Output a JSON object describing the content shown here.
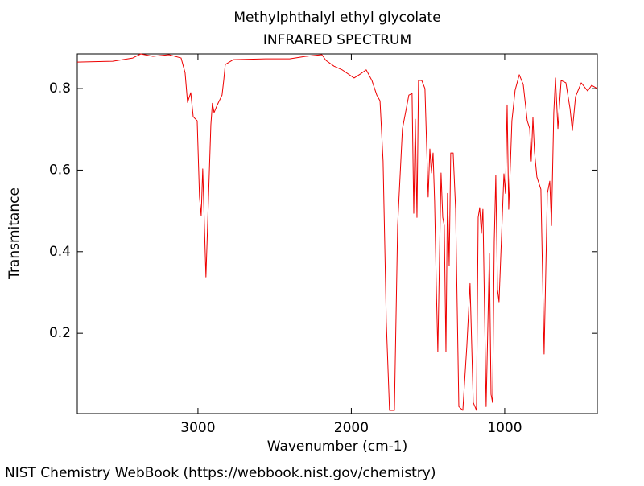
{
  "chart_data": {
    "type": "line",
    "title": "Methylphthalyl ethyl glycolate",
    "subtitle": "INFRARED SPECTRUM",
    "x_label": "Wavenumber (cm-1)",
    "y_label": "Transmitance",
    "source": "NIST Chemistry WebBook (https://webbook.nist.gov/chemistry)",
    "color": "#ee0000",
    "xlim": [
      3787,
      396
    ],
    "ylim": [
      0.003,
      0.885
    ],
    "xticks": [
      3000,
      2000,
      1000
    ],
    "yticks": [
      0.2,
      0.4,
      0.6,
      0.8
    ],
    "x": [
      3787,
      3556,
      3425,
      3373,
      3294,
      3189,
      3110,
      3084,
      3068,
      3047,
      3031,
      3005,
      2990,
      2979,
      2969,
      2948,
      2932,
      2916,
      2906,
      2895,
      2874,
      2843,
      2832,
      2822,
      2769,
      2559,
      2402,
      2297,
      2192,
      2165,
      2113,
      2060,
      1982,
      1940,
      1903,
      1866,
      1834,
      1813,
      1793,
      1772,
      1751,
      1719,
      1698,
      1667,
      1625,
      1604,
      1593,
      1583,
      1572,
      1562,
      1541,
      1520,
      1499,
      1488,
      1478,
      1467,
      1457,
      1446,
      1436,
      1425,
      1415,
      1404,
      1394,
      1383,
      1373,
      1362,
      1352,
      1336,
      1320,
      1299,
      1273,
      1247,
      1226,
      1205,
      1184,
      1173,
      1163,
      1152,
      1142,
      1121,
      1100,
      1089,
      1079,
      1068,
      1058,
      1047,
      1037,
      1026,
      1005,
      995,
      984,
      974,
      963,
      953,
      932,
      905,
      879,
      853,
      837,
      827,
      816,
      806,
      790,
      764,
      743,
      722,
      706,
      695,
      680,
      669,
      653,
      632,
      601,
      574,
      559,
      538,
      501,
      459,
      433,
      396
    ],
    "values": [
      0.865,
      0.867,
      0.875,
      0.885,
      0.879,
      0.883,
      0.875,
      0.839,
      0.766,
      0.79,
      0.731,
      0.721,
      0.534,
      0.488,
      0.603,
      0.338,
      0.524,
      0.711,
      0.764,
      0.741,
      0.76,
      0.784,
      0.82,
      0.859,
      0.871,
      0.873,
      0.873,
      0.879,
      0.883,
      0.869,
      0.855,
      0.846,
      0.826,
      0.836,
      0.846,
      0.82,
      0.784,
      0.77,
      0.622,
      0.228,
      0.011,
      0.011,
      0.464,
      0.701,
      0.784,
      0.788,
      0.494,
      0.725,
      0.484,
      0.82,
      0.82,
      0.8,
      0.534,
      0.652,
      0.593,
      0.642,
      0.524,
      0.317,
      0.155,
      0.386,
      0.593,
      0.484,
      0.464,
      0.155,
      0.543,
      0.366,
      0.642,
      0.642,
      0.504,
      0.02,
      0.011,
      0.168,
      0.322,
      0.03,
      0.011,
      0.484,
      0.508,
      0.445,
      0.504,
      0.02,
      0.395,
      0.05,
      0.03,
      0.425,
      0.587,
      0.307,
      0.277,
      0.386,
      0.591,
      0.543,
      0.76,
      0.504,
      0.613,
      0.721,
      0.796,
      0.834,
      0.81,
      0.721,
      0.702,
      0.622,
      0.729,
      0.646,
      0.583,
      0.553,
      0.149,
      0.543,
      0.573,
      0.464,
      0.741,
      0.826,
      0.702,
      0.82,
      0.814,
      0.751,
      0.697,
      0.78,
      0.814,
      0.794,
      0.808,
      0.8
    ]
  }
}
